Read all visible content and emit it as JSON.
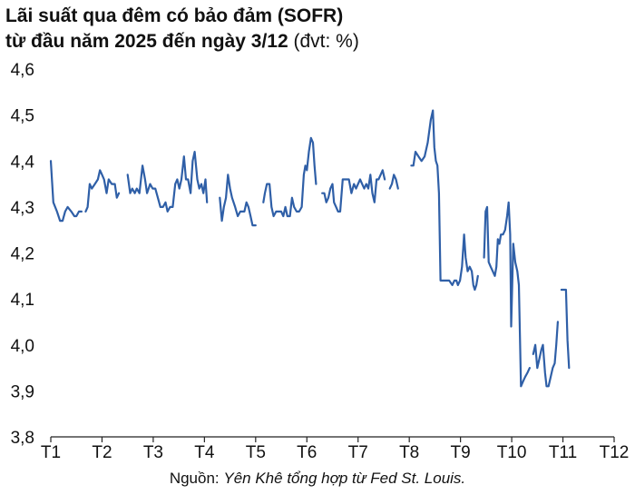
{
  "title": {
    "line1": "Lãi suất qua đêm có bảo đảm (SOFR)",
    "line2_bold": "từ đầu năm 2025 đến ngày 3/12",
    "line2_unit": " (đvt: %)"
  },
  "source": {
    "prefix": "Nguồn: ",
    "text": "Yên Khê tổng hợp từ Fed St. Louis."
  },
  "chart_data": {
    "type": "line",
    "xlabel": "",
    "ylabel": "",
    "ylim": [
      3.8,
      4.6
    ],
    "yticks": [
      "4,6",
      "4,5",
      "4,4",
      "4,3",
      "4,2",
      "4,1",
      "4,0",
      "3,9",
      "3,8"
    ],
    "xticks": [
      "T1",
      "T2",
      "T3",
      "T4",
      "T5",
      "T6",
      "T7",
      "T8",
      "T9",
      "T10",
      "T11",
      "T12"
    ],
    "grid": false,
    "line_color": "#2f5fa7",
    "series": [
      {
        "segments": [
          [
            [
              0.0,
              4.4
            ],
            [
              0.05,
              4.31
            ],
            [
              0.12,
              4.29
            ],
            [
              0.18,
              4.27
            ],
            [
              0.23,
              4.27
            ],
            [
              0.28,
              4.29
            ],
            [
              0.33,
              4.3
            ],
            [
              0.4,
              4.29
            ],
            [
              0.46,
              4.28
            ],
            [
              0.5,
              4.28
            ],
            [
              0.55,
              4.29
            ],
            [
              0.6,
              4.29
            ]
          ],
          [
            [
              0.68,
              4.29
            ],
            [
              0.72,
              4.3
            ],
            [
              0.76,
              4.35
            ],
            [
              0.8,
              4.34
            ],
            [
              0.86,
              4.35
            ],
            [
              0.92,
              4.36
            ],
            [
              0.96,
              4.38
            ],
            [
              1.0,
              4.37
            ],
            [
              1.04,
              4.36
            ],
            [
              1.09,
              4.33
            ],
            [
              1.13,
              4.36
            ],
            [
              1.19,
              4.35
            ],
            [
              1.25,
              4.35
            ],
            [
              1.29,
              4.32
            ],
            [
              1.33,
              4.33
            ]
          ],
          [
            [
              1.5,
              4.37
            ],
            [
              1.55,
              4.33
            ],
            [
              1.59,
              4.34
            ],
            [
              1.64,
              4.33
            ],
            [
              1.68,
              4.34
            ],
            [
              1.73,
              4.33
            ],
            [
              1.79,
              4.39
            ],
            [
              1.84,
              4.36
            ],
            [
              1.88,
              4.33
            ],
            [
              1.94,
              4.35
            ],
            [
              1.99,
              4.34
            ],
            [
              2.04,
              4.34
            ],
            [
              2.09,
              4.32
            ],
            [
              2.14,
              4.3
            ],
            [
              2.19,
              4.3
            ],
            [
              2.24,
              4.31
            ],
            [
              2.28,
              4.29
            ],
            [
              2.33,
              4.3
            ],
            [
              2.38,
              4.3
            ],
            [
              2.43,
              4.35
            ],
            [
              2.47,
              4.36
            ],
            [
              2.51,
              4.34
            ],
            [
              2.55,
              4.36
            ],
            [
              2.6,
              4.41
            ],
            [
              2.64,
              4.36
            ],
            [
              2.68,
              4.36
            ],
            [
              2.73,
              4.33
            ],
            [
              2.77,
              4.4
            ],
            [
              2.81,
              4.42
            ],
            [
              2.86,
              4.36
            ],
            [
              2.9,
              4.34
            ],
            [
              2.94,
              4.35
            ],
            [
              2.98,
              4.33
            ],
            [
              3.02,
              4.36
            ],
            [
              3.05,
              4.31
            ]
          ],
          [
            [
              3.3,
              4.32
            ],
            [
              3.34,
              4.27
            ],
            [
              3.38,
              4.3
            ],
            [
              3.42,
              4.32
            ],
            [
              3.46,
              4.37
            ],
            [
              3.5,
              4.34
            ],
            [
              3.54,
              4.32
            ],
            [
              3.6,
              4.3
            ],
            [
              3.65,
              4.28
            ],
            [
              3.7,
              4.29
            ],
            [
              3.74,
              4.29
            ],
            [
              3.78,
              4.29
            ],
            [
              3.82,
              4.31
            ],
            [
              3.86,
              4.3
            ],
            [
              3.9,
              4.28
            ],
            [
              3.94,
              4.26
            ],
            [
              4.0,
              4.26
            ]
          ],
          [
            [
              4.15,
              4.31
            ],
            [
              4.18,
              4.33
            ],
            [
              4.22,
              4.35
            ],
            [
              4.27,
              4.35
            ],
            [
              4.31,
              4.3
            ],
            [
              4.35,
              4.28
            ],
            [
              4.4,
              4.29
            ],
            [
              4.45,
              4.29
            ],
            [
              4.5,
              4.29
            ],
            [
              4.54,
              4.28
            ],
            [
              4.58,
              4.3
            ],
            [
              4.62,
              4.28
            ],
            [
              4.67,
              4.28
            ],
            [
              4.71,
              4.32
            ],
            [
              4.75,
              4.3
            ],
            [
              4.8,
              4.29
            ],
            [
              4.85,
              4.29
            ],
            [
              4.9,
              4.3
            ],
            [
              4.94,
              4.37
            ],
            [
              4.97,
              4.39
            ],
            [
              5.0,
              4.38
            ],
            [
              5.04,
              4.42
            ],
            [
              5.08,
              4.45
            ],
            [
              5.12,
              4.44
            ],
            [
              5.15,
              4.39
            ],
            [
              5.18,
              4.35
            ]
          ],
          [
            [
              5.3,
              4.33
            ],
            [
              5.34,
              4.33
            ],
            [
              5.38,
              4.31
            ],
            [
              5.42,
              4.32
            ],
            [
              5.46,
              4.34
            ],
            [
              5.5,
              4.35
            ],
            [
              5.53,
              4.31
            ],
            [
              5.57,
              4.3
            ],
            [
              5.61,
              4.29
            ],
            [
              5.65,
              4.29
            ],
            [
              5.7,
              4.36
            ],
            [
              5.76,
              4.36
            ],
            [
              5.82,
              4.36
            ],
            [
              5.87,
              4.33
            ],
            [
              5.92,
              4.35
            ],
            [
              5.96,
              4.34
            ],
            [
              6.0,
              4.35
            ],
            [
              6.04,
              4.36
            ],
            [
              6.08,
              4.35
            ],
            [
              6.12,
              4.34
            ],
            [
              6.16,
              4.35
            ],
            [
              6.2,
              4.34
            ],
            [
              6.24,
              4.37
            ],
            [
              6.28,
              4.33
            ],
            [
              6.32,
              4.31
            ],
            [
              6.36,
              4.36
            ],
            [
              6.4,
              4.36
            ],
            [
              6.44,
              4.37
            ],
            [
              6.48,
              4.38
            ],
            [
              6.52,
              4.36
            ]
          ],
          [
            [
              6.62,
              4.34
            ],
            [
              6.66,
              4.35
            ],
            [
              6.7,
              4.37
            ],
            [
              6.74,
              4.36
            ],
            [
              6.78,
              4.34
            ]
          ],
          [
            [
              7.04,
              4.39
            ],
            [
              7.08,
              4.39
            ],
            [
              7.12,
              4.42
            ],
            [
              7.18,
              4.41
            ],
            [
              7.24,
              4.4
            ],
            [
              7.3,
              4.41
            ],
            [
              7.36,
              4.44
            ],
            [
              7.42,
              4.49
            ],
            [
              7.46,
              4.51
            ],
            [
              7.49,
              4.43
            ],
            [
              7.52,
              4.4
            ],
            [
              7.55,
              4.39
            ],
            [
              7.58,
              4.33
            ],
            [
              7.61,
              4.14
            ],
            [
              7.66,
              4.14
            ],
            [
              7.72,
              4.14
            ],
            [
              7.78,
              4.14
            ],
            [
              7.84,
              4.13
            ],
            [
              7.88,
              4.14
            ],
            [
              7.92,
              4.14
            ],
            [
              7.95,
              4.13
            ],
            [
              7.99,
              4.14
            ],
            [
              8.03,
              4.17
            ],
            [
              8.07,
              4.24
            ],
            [
              8.1,
              4.19
            ],
            [
              8.14,
              4.16
            ],
            [
              8.18,
              4.17
            ],
            [
              8.22,
              4.16
            ],
            [
              8.25,
              4.13
            ],
            [
              8.28,
              4.12
            ],
            [
              8.31,
              4.13
            ],
            [
              8.34,
              4.15
            ]
          ],
          [
            [
              8.46,
              4.19
            ],
            [
              8.49,
              4.29
            ],
            [
              8.52,
              4.3
            ],
            [
              8.55,
              4.18
            ],
            [
              8.59,
              4.17
            ],
            [
              8.63,
              4.16
            ],
            [
              8.67,
              4.15
            ],
            [
              8.7,
              4.17
            ],
            [
              8.73,
              4.23
            ],
            [
              8.76,
              4.22
            ],
            [
              8.79,
              4.24
            ],
            [
              8.83,
              4.24
            ],
            [
              8.87,
              4.25
            ],
            [
              8.91,
              4.28
            ],
            [
              8.94,
              4.31
            ],
            [
              8.97,
              4.24
            ],
            [
              8.99,
              4.04
            ],
            [
              9.03,
              4.22
            ],
            [
              9.07,
              4.18
            ],
            [
              9.11,
              4.16
            ],
            [
              9.14,
              4.13
            ],
            [
              9.18,
              3.91
            ],
            [
              9.22,
              3.92
            ],
            [
              9.26,
              3.93
            ],
            [
              9.31,
              3.94
            ],
            [
              9.35,
              3.95
            ]
          ],
          [
            [
              9.42,
              3.98
            ],
            [
              9.46,
              4.0
            ],
            [
              9.5,
              3.95
            ],
            [
              9.54,
              3.97
            ],
            [
              9.58,
              3.99
            ],
            [
              9.61,
              4.0
            ],
            [
              9.65,
              3.94
            ],
            [
              9.68,
              3.91
            ],
            [
              9.72,
              3.91
            ],
            [
              9.76,
              3.93
            ],
            [
              9.8,
              3.95
            ],
            [
              9.84,
              3.96
            ],
            [
              9.87,
              4.0
            ],
            [
              9.9,
              4.05
            ]
          ],
          [
            [
              9.97,
              4.12
            ],
            [
              10.02,
              4.12
            ],
            [
              10.06,
              4.12
            ],
            [
              10.09,
              4.01
            ],
            [
              10.12,
              3.95
            ]
          ]
        ]
      }
    ]
  }
}
